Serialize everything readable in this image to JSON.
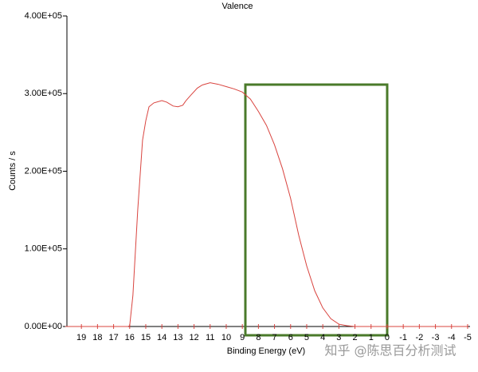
{
  "chart_data": {
    "type": "line",
    "title": "Valence",
    "x_label": "Binding Energy (eV)",
    "y_label": "Counts / s",
    "x": [
      20,
      16.1,
      16,
      15.8,
      15.5,
      15.2,
      15,
      14.8,
      14.5,
      14,
      13.7,
      13.3,
      13,
      12.7,
      12.5,
      12.2,
      11.8,
      11.5,
      11,
      10.5,
      10,
      9.5,
      9,
      8.5,
      8,
      7.5,
      7,
      6.5,
      6,
      5.5,
      5,
      4.5,
      4,
      3.5,
      3,
      2.5,
      2,
      0,
      -5
    ],
    "values": [
      0,
      0,
      1000,
      40000,
      150000,
      240000,
      265000,
      283000,
      288000,
      291000,
      289000,
      284000,
      283000,
      285000,
      291000,
      298000,
      307000,
      311000,
      314000,
      312000,
      309000,
      306000,
      302000,
      293000,
      277000,
      259000,
      234000,
      203000,
      165000,
      118000,
      78000,
      46000,
      24000,
      10000,
      3000,
      1000,
      0,
      0,
      0
    ],
    "color": "#d9443f",
    "xlim": [
      19.9,
      -5.15
    ],
    "xticks": [
      19,
      18,
      17,
      16,
      15,
      14,
      13,
      12,
      11,
      10,
      9,
      8,
      7,
      6,
      5,
      4,
      3,
      2,
      1,
      0,
      -1,
      -2,
      -3,
      -4,
      -5
    ],
    "ylim": [
      0,
      400000
    ],
    "yticks": [
      {
        "value": 0,
        "label": "0.00E+00"
      },
      {
        "value": 100000,
        "label": "1.00E+05"
      },
      {
        "value": 200000,
        "label": "2.00E+05"
      },
      {
        "value": 300000,
        "label": "3.00E+05"
      },
      {
        "value": 400000,
        "label": "4.00E+05"
      }
    ],
    "watermark": "知乎 @陈思百分析测试"
  }
}
